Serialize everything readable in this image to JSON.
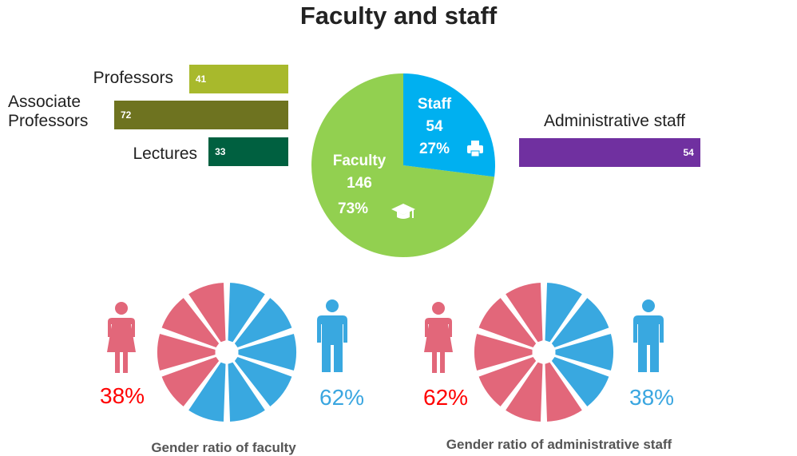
{
  "title": "Faculty and staff",
  "colors": {
    "professors": "#a8b92c",
    "associate": "#6e7320",
    "lectures": "#006040",
    "admin": "#7030a0",
    "faculty_pie": "#92d050",
    "staff_pie": "#00b0f0",
    "female": "#e2677a",
    "male": "#39a8e0",
    "female_text": "#ff0000",
    "male_text": "#3aa6e0"
  },
  "chart_data": [
    {
      "type": "bar",
      "orientation": "horizontal",
      "categories": [
        "Professors",
        "Associate Professors",
        "Lectures"
      ],
      "category_lines": [
        [
          "Professors"
        ],
        [
          "Associate",
          "Professors"
        ],
        [
          "Lectures"
        ]
      ],
      "values": [
        41,
        72,
        33
      ],
      "value_labels": [
        "41",
        "72",
        "33"
      ]
    },
    {
      "type": "pie",
      "slices": [
        {
          "label": "Faculty",
          "value": 146,
          "percent": 73,
          "value_text": "146",
          "percent_text": "73%",
          "icon": "graduation-cap-icon"
        },
        {
          "label": "Staff",
          "value": 54,
          "percent": 27,
          "value_text": "54",
          "percent_text": "27%",
          "icon": "printer-icon"
        }
      ]
    },
    {
      "type": "bar",
      "orientation": "horizontal",
      "categories": [
        "Administrative staff"
      ],
      "values": [
        54
      ],
      "value_labels": [
        "54"
      ]
    },
    {
      "type": "pie",
      "title": "Gender ratio of faculty",
      "slices": [
        {
          "label": "Female",
          "percent": 38,
          "percent_text": "38%",
          "icon": "female-icon"
        },
        {
          "label": "Male",
          "percent": 62,
          "percent_text": "62%",
          "icon": "male-icon"
        }
      ],
      "segments": 10
    },
    {
      "type": "pie",
      "title": "Gender ratio of administrative staff",
      "slices": [
        {
          "label": "Female",
          "percent": 62,
          "percent_text": "62%",
          "icon": "female-icon"
        },
        {
          "label": "Male",
          "percent": 38,
          "percent_text": "38%",
          "icon": "male-icon"
        }
      ],
      "segments": 10
    }
  ]
}
